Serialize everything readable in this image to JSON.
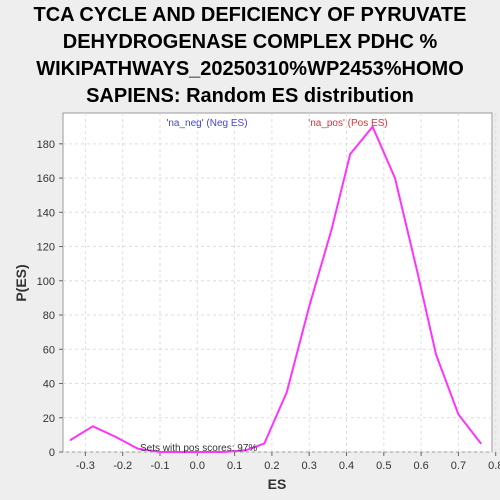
{
  "chart_data": {
    "type": "line",
    "title_lines": [
      "TCA CYCLE AND DEFICIENCY OF PYRUVATE",
      "DEHYDROGENASE COMPLEX PDHC %",
      "WIKIPATHWAYS_20250310%WP2453%HOMO",
      "SAPIENS: Random ES distribution"
    ],
    "xlabel": "ES",
    "ylabel": "P(ES)",
    "xlim": [
      -0.36,
      0.79
    ],
    "ylim": [
      0,
      198
    ],
    "xticks": [
      -0.3,
      -0.2,
      -0.1,
      0.0,
      0.1,
      0.2,
      0.3,
      0.4,
      0.5,
      0.6,
      0.7,
      0.8
    ],
    "yticks": [
      0,
      20,
      40,
      60,
      80,
      100,
      120,
      140,
      160,
      180
    ],
    "grid": true,
    "legend": [
      {
        "label": "'na_neg' (Neg ES)",
        "color": "#4444dd"
      },
      {
        "label": "'na_pos' (Pos ES)",
        "color": "#dd3333"
      }
    ],
    "annotation": "Sets with pos scores: 97%",
    "series": [
      {
        "color": "#ff33ff",
        "x": [
          -0.34,
          -0.28,
          -0.22,
          -0.16,
          -0.1,
          -0.04,
          0.02,
          0.07,
          0.13,
          0.18,
          0.24,
          0.3,
          0.36,
          0.41,
          0.47,
          0.53,
          0.59,
          0.64,
          0.7,
          0.76
        ],
        "y": [
          7,
          15,
          9,
          2,
          0,
          0,
          0,
          0,
          1,
          5,
          35,
          85,
          130,
          174,
          190,
          160,
          105,
          57,
          22,
          5
        ]
      }
    ]
  }
}
